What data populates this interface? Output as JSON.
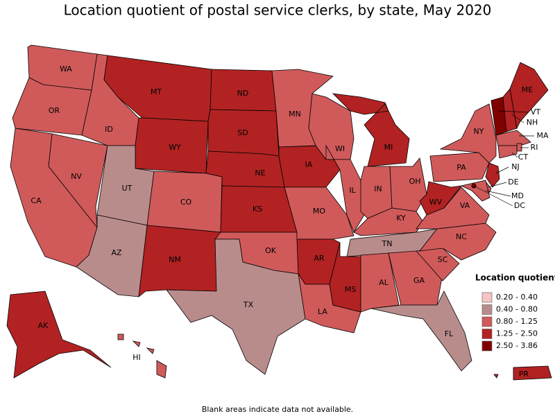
{
  "title": "Location quotient of postal service clerks, by state, May 2020",
  "legend": {
    "title": "Location quotient",
    "items": [
      {
        "label": "0.20 - 0.40",
        "color": "#f5c4c4"
      },
      {
        "label": "0.40 - 0.80",
        "color": "#b98c8c"
      },
      {
        "label": "0.80 - 1.25",
        "color": "#d05a5a"
      },
      {
        "label": "1.25 - 2.50",
        "color": "#b22222"
      },
      {
        "label": "2.50 - 3.86",
        "color": "#800000"
      }
    ]
  },
  "states": [
    {
      "abbr": "WA",
      "class": 2
    },
    {
      "abbr": "OR",
      "class": 2
    },
    {
      "abbr": "CA",
      "class": 2
    },
    {
      "abbr": "NV",
      "class": 2
    },
    {
      "abbr": "ID",
      "class": 2
    },
    {
      "abbr": "MT",
      "class": 3
    },
    {
      "abbr": "WY",
      "class": 3
    },
    {
      "abbr": "UT",
      "class": 1
    },
    {
      "abbr": "CO",
      "class": 2
    },
    {
      "abbr": "AZ",
      "class": 1
    },
    {
      "abbr": "NM",
      "class": 3
    },
    {
      "abbr": "ND",
      "class": 3
    },
    {
      "abbr": "SD",
      "class": 3
    },
    {
      "abbr": "NE",
      "class": 3
    },
    {
      "abbr": "KS",
      "class": 3
    },
    {
      "abbr": "OK",
      "class": 2
    },
    {
      "abbr": "TX",
      "class": 1
    },
    {
      "abbr": "MN",
      "class": 2
    },
    {
      "abbr": "IA",
      "class": 3
    },
    {
      "abbr": "MO",
      "class": 2
    },
    {
      "abbr": "AR",
      "class": 3
    },
    {
      "abbr": "LA",
      "class": 2
    },
    {
      "abbr": "WI",
      "class": 2
    },
    {
      "abbr": "IL",
      "class": 2
    },
    {
      "abbr": "MI",
      "class": 3
    },
    {
      "abbr": "IN",
      "class": 2
    },
    {
      "abbr": "OH",
      "class": 2
    },
    {
      "abbr": "KY",
      "class": 2
    },
    {
      "abbr": "TN",
      "class": 1
    },
    {
      "abbr": "MS",
      "class": 3
    },
    {
      "abbr": "AL",
      "class": 2
    },
    {
      "abbr": "GA",
      "class": 2
    },
    {
      "abbr": "FL",
      "class": 1
    },
    {
      "abbr": "SC",
      "class": 2
    },
    {
      "abbr": "NC",
      "class": 2
    },
    {
      "abbr": "VA",
      "class": 2
    },
    {
      "abbr": "WV",
      "class": 3
    },
    {
      "abbr": "PA",
      "class": 2
    },
    {
      "abbr": "NY",
      "class": 2
    },
    {
      "abbr": "VT",
      "class": 4
    },
    {
      "abbr": "NH",
      "class": 3
    },
    {
      "abbr": "ME",
      "class": 3
    },
    {
      "abbr": "MA",
      "class": 2
    },
    {
      "abbr": "RI",
      "class": 2
    },
    {
      "abbr": "CT",
      "class": 2
    },
    {
      "abbr": "NJ",
      "class": 3
    },
    {
      "abbr": "DE",
      "class": 2
    },
    {
      "abbr": "MD",
      "class": 2
    },
    {
      "abbr": "DC",
      "class": 4
    },
    {
      "abbr": "AK",
      "class": 3
    },
    {
      "abbr": "HI",
      "class": 2
    },
    {
      "abbr": "PR",
      "class": 3
    }
  ],
  "footnote": "Blank areas indicate data not available."
}
